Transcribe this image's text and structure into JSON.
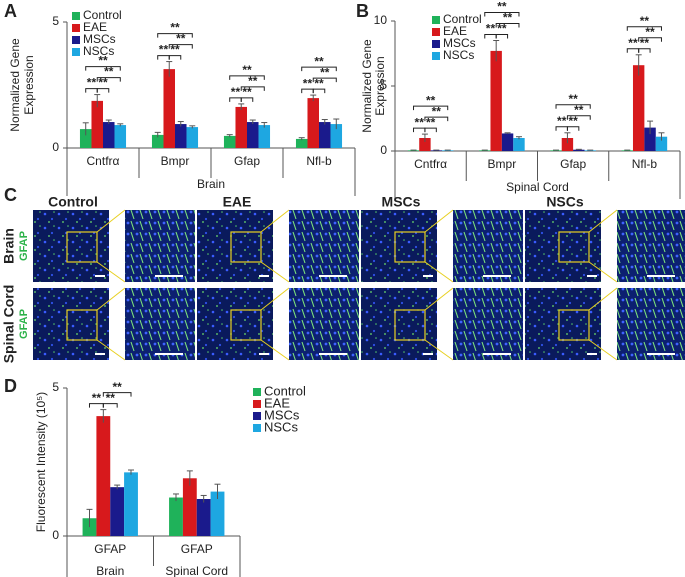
{
  "chart_data": [
    {
      "type": "bar",
      "panel_label": "A",
      "ylabel": [
        "Normalized Gene",
        "Expression"
      ],
      "xlabel": "Brain",
      "categories": [
        "Cntfrα",
        "Bmpr",
        "Gfap",
        "Nfl-b"
      ],
      "ylim": [
        0,
        5
      ],
      "yticks": [
        0,
        5
      ],
      "legend": "top-left",
      "series": [
        {
          "name": "Control",
          "color": "#1fb25a",
          "values": [
            0.75,
            0.52,
            0.48,
            0.36
          ],
          "errors": [
            0.25,
            0.1,
            0.05,
            0.05
          ]
        },
        {
          "name": "EAE",
          "color": "#d7191c",
          "values": [
            1.87,
            3.13,
            1.63,
            1.98
          ],
          "errors": [
            0.25,
            0.3,
            0.12,
            0.12
          ]
        },
        {
          "name": "MSCs",
          "color": "#1a1a8c",
          "values": [
            1.03,
            0.95,
            1.03,
            1.03
          ],
          "errors": [
            0.08,
            0.1,
            0.08,
            0.1
          ]
        },
        {
          "name": "NSCs",
          "color": "#1ea7e1",
          "values": [
            0.91,
            0.83,
            0.91,
            0.95
          ],
          "errors": [
            0.05,
            0.05,
            0.1,
            0.2
          ]
        }
      ],
      "significance": [
        [
          "**",
          "**",
          "**",
          "**"
        ],
        [
          "**",
          "**",
          "**",
          "**"
        ],
        [
          "**",
          "**",
          "**",
          "**"
        ],
        [
          "**",
          "**",
          "**",
          "**"
        ]
      ]
    },
    {
      "type": "bar",
      "panel_label": "B",
      "ylabel": [
        "Normalized Gene",
        "Expression"
      ],
      "xlabel": "Spinal Cord",
      "categories": [
        "Cntfrα",
        "Bmpr",
        "Gfap",
        "Nfl-b"
      ],
      "ylim": [
        0,
        10
      ],
      "yticks": [
        0,
        5,
        10
      ],
      "legend": "top-left",
      "series": [
        {
          "name": "Control",
          "color": "#1fb25a",
          "values": [
            0.05,
            0.05,
            0.05,
            0.05
          ],
          "errors": [
            0.02,
            0.02,
            0.02,
            0.02
          ]
        },
        {
          "name": "EAE",
          "color": "#d7191c",
          "values": [
            1.0,
            7.7,
            1.0,
            6.6
          ],
          "errors": [
            0.3,
            0.8,
            0.4,
            0.8
          ]
        },
        {
          "name": "MSCs",
          "color": "#1a1a8c",
          "values": [
            0.05,
            1.35,
            0.1,
            1.8
          ],
          "errors": [
            0.02,
            0.05,
            0.03,
            0.5
          ]
        },
        {
          "name": "NSCs",
          "color": "#1ea7e1",
          "values": [
            0.05,
            1.0,
            0.05,
            1.1
          ],
          "errors": [
            0.02,
            0.1,
            0.02,
            0.3
          ]
        }
      ],
      "significance": [
        [
          "**",
          "**",
          "**",
          "**"
        ],
        [
          "**",
          "**",
          "**",
          "**"
        ],
        [
          "**",
          "**",
          "**",
          "**"
        ],
        [
          "**",
          "**",
          "**",
          "**"
        ]
      ]
    },
    {
      "type": "bar",
      "panel_label": "D",
      "ylabel": [
        "Fluorescent Intensity (10⁵)"
      ],
      "categories": [
        "GFAP",
        "GFAP"
      ],
      "groups": [
        "Brain",
        "Spinal Cord"
      ],
      "ylim": [
        0,
        5
      ],
      "yticks": [
        0,
        5
      ],
      "legend": "top-right",
      "series": [
        {
          "name": "Control",
          "color": "#1fb25a",
          "values": [
            0.6,
            1.3
          ],
          "errors": [
            0.3,
            0.12
          ]
        },
        {
          "name": "EAE",
          "color": "#d7191c",
          "values": [
            4.05,
            1.95
          ],
          "errors": [
            0.22,
            0.25
          ]
        },
        {
          "name": "MSCs",
          "color": "#1a1a8c",
          "values": [
            1.65,
            1.25
          ],
          "errors": [
            0.07,
            0.12
          ]
        },
        {
          "name": "NSCs",
          "color": "#1ea7e1",
          "values": [
            2.15,
            1.5
          ],
          "errors": [
            0.08,
            0.25
          ]
        }
      ],
      "significance": [
        [
          "**",
          "**",
          "**"
        ],
        []
      ]
    }
  ],
  "panel_c": {
    "panel_label": "C",
    "columns": [
      "Control",
      "EAE",
      "MSCs",
      "NSCs"
    ],
    "rows": [
      {
        "tissue": "Brain",
        "stain": "GFAP"
      },
      {
        "tissue": "Spinal Cord",
        "stain": "GFAP"
      }
    ]
  }
}
